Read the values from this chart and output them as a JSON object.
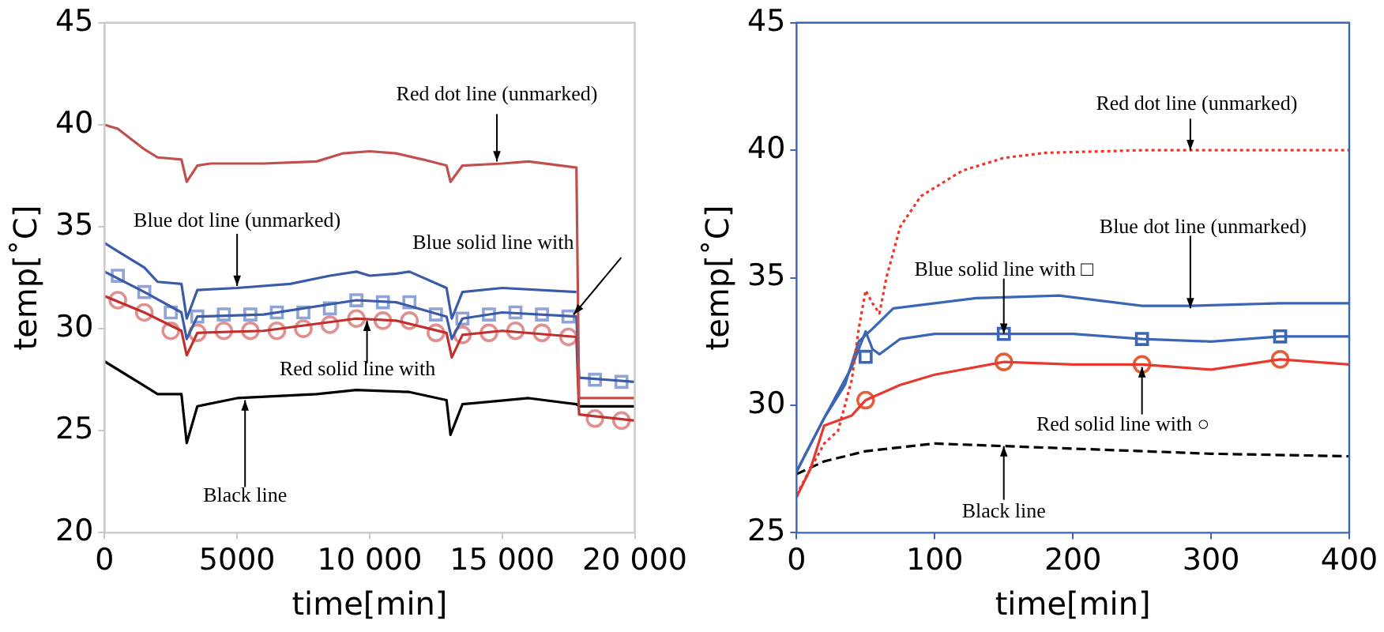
{
  "chart_data": [
    {
      "type": "line",
      "xlabel": "time[min]",
      "ylabel": "temp[˚C]",
      "xlim": [
        0,
        20000
      ],
      "ylim": [
        20,
        45
      ],
      "xticks": [
        0,
        5000,
        {
          "value": 10000,
          "label": "10 000"
        },
        {
          "value": 15000,
          "label": "15 000"
        },
        {
          "value": 20000,
          "label": "20 000"
        }
      ],
      "yticks": [
        20,
        25,
        30,
        35,
        40,
        45
      ],
      "grid": false,
      "legend": false,
      "series": [
        {
          "color": "#c0504d",
          "line_style": "solid",
          "x": [
            0,
            500,
            1000,
            1500,
            2000,
            2900,
            3100,
            3500,
            4000,
            6000,
            8000,
            9000,
            10000,
            11000,
            12000,
            12900,
            13050,
            13500,
            15000,
            16000,
            17800,
            17900,
            20000
          ],
          "values": [
            40,
            39.8,
            39.3,
            38.8,
            38.4,
            38.3,
            37.2,
            38,
            38.1,
            38.1,
            38.2,
            38.6,
            38.7,
            38.6,
            38.3,
            38,
            37.2,
            38,
            38.1,
            38.2,
            37.9,
            26.6,
            26.6
          ]
        },
        {
          "color": "#3a5ba8",
          "line_style": "solid",
          "x": [
            0,
            500,
            1500,
            2000,
            2900,
            3100,
            3500,
            5000,
            7000,
            8500,
            9500,
            10000,
            11000,
            11500,
            12900,
            13100,
            13500,
            15000,
            17800
          ],
          "values": [
            34.2,
            33.8,
            33,
            32.3,
            32.2,
            30.5,
            31.9,
            32,
            32.2,
            32.6,
            32.8,
            32.6,
            32.7,
            32.8,
            32,
            30.5,
            31.8,
            32,
            31.8
          ]
        },
        {
          "color": "#3a5ba8",
          "line_style": "solid",
          "x": [
            0,
            1500,
            2900,
            3100,
            3500,
            6000,
            9500,
            11000,
            12900,
            13100,
            13500,
            15000,
            17800,
            17900,
            20000
          ],
          "values": [
            32.8,
            31.8,
            30.8,
            29.5,
            30.6,
            30.7,
            31.4,
            31.3,
            30.6,
            29.5,
            30.5,
            30.8,
            30.6,
            27.6,
            27.4
          ]
        },
        {
          "color": "#c0302d",
          "line_style": "solid",
          "x": [
            0,
            1500,
            2900,
            3100,
            3500,
            6000,
            9500,
            11000,
            12900,
            13100,
            13500,
            15000,
            17800,
            17900,
            20000
          ],
          "values": [
            31.6,
            30.8,
            29.9,
            28.7,
            29.8,
            29.9,
            30.5,
            30.4,
            29.8,
            28.6,
            29.7,
            29.9,
            29.6,
            25.8,
            25.5
          ]
        },
        {
          "color": "#000000",
          "line_style": "solid",
          "x": [
            0,
            1500,
            2000,
            2900,
            3100,
            3500,
            5000,
            8000,
            9500,
            11500,
            12900,
            13050,
            13500,
            16000,
            17800,
            17900,
            20000
          ],
          "values": [
            28.4,
            27.2,
            26.8,
            26.8,
            24.4,
            26.2,
            26.6,
            26.8,
            27,
            26.9,
            26.5,
            24.8,
            26.3,
            26.6,
            26.3,
            26.2,
            26.2
          ]
        },
        {
          "type": "scatter",
          "marker": "square",
          "color": "#8fa3d6",
          "x": [
            500,
            1500,
            2500,
            3500,
            4500,
            5500,
            6500,
            7500,
            8500,
            9500,
            10500,
            11500,
            12500,
            13500,
            14500,
            15500,
            16500,
            17500,
            18500,
            19500
          ],
          "values": [
            32.6,
            31.8,
            30.8,
            30.6,
            30.7,
            30.7,
            30.8,
            30.8,
            31,
            31.4,
            31.3,
            31.3,
            30.7,
            30.5,
            30.7,
            30.8,
            30.7,
            30.6,
            27.5,
            27.4
          ]
        },
        {
          "type": "scatter",
          "marker": "circle",
          "color": "#e09090",
          "x": [
            500,
            1500,
            2500,
            3500,
            4500,
            5500,
            6500,
            7500,
            8500,
            9500,
            10500,
            11500,
            12500,
            13500,
            14500,
            15500,
            16500,
            17500,
            18500,
            19500
          ],
          "values": [
            31.4,
            30.8,
            29.9,
            29.8,
            29.9,
            29.9,
            29.9,
            30,
            30.2,
            30.5,
            30.4,
            30.4,
            29.8,
            29.7,
            29.8,
            29.9,
            29.8,
            29.6,
            25.6,
            25.5
          ]
        }
      ],
      "annotations": [
        {
          "text": "Red dot line (unmarked)",
          "x": 14800,
          "y": 38.2
        },
        {
          "text": "Blue dot line (unmarked)",
          "x": 5000,
          "y": 32.1
        },
        {
          "text": "Blue solid line with",
          "x": 17700,
          "y": 30.7
        },
        {
          "text": "Red solid line with",
          "x": 9900,
          "y": 30.4
        },
        {
          "text": "Black line",
          "x": 5300,
          "y": 26.5
        }
      ]
    },
    {
      "type": "line",
      "xlabel": "time[min]",
      "ylabel": "temp[˚C]",
      "xlim": [
        0,
        400
      ],
      "ylim": [
        25,
        45
      ],
      "xticks": [
        0,
        100,
        200,
        300,
        400
      ],
      "yticks": [
        25,
        30,
        35,
        40,
        45
      ],
      "grid": false,
      "legend": false,
      "series": [
        {
          "color": "#e8392e",
          "line_style": "dotted",
          "x": [
            0,
            10,
            20,
            30,
            40,
            45,
            50,
            55,
            60,
            65,
            75,
            90,
            120,
            150,
            180,
            250,
            300,
            400
          ],
          "values": [
            26.5,
            27.5,
            28.5,
            29,
            31,
            33,
            34.5,
            34,
            33.6,
            35,
            37,
            38.2,
            39.2,
            39.7,
            39.9,
            40,
            40,
            40
          ]
        },
        {
          "color": "#3a66b5",
          "line_style": "solid",
          "x": [
            0,
            20,
            35,
            45,
            55,
            70,
            100,
            130,
            190,
            250,
            285,
            350,
            400
          ],
          "values": [
            27.4,
            29.5,
            30.8,
            32.5,
            33,
            33.8,
            34,
            34.2,
            34.3,
            33.9,
            33.9,
            34,
            34
          ]
        },
        {
          "color": "#3a66b5",
          "line_style": "solid",
          "x": [
            0,
            20,
            40,
            50,
            55,
            60,
            75,
            100,
            150,
            200,
            250,
            300,
            350,
            400
          ],
          "values": [
            27.4,
            29.5,
            31.5,
            32.9,
            32.2,
            32,
            32.6,
            32.8,
            32.8,
            32.8,
            32.6,
            32.5,
            32.7,
            32.7
          ]
        },
        {
          "color": "#e8392e",
          "line_style": "solid",
          "x": [
            0,
            10,
            20,
            40,
            50,
            75,
            100,
            150,
            200,
            250,
            300,
            350,
            400
          ],
          "values": [
            26.4,
            27.5,
            29.2,
            29.6,
            30.2,
            30.8,
            31.2,
            31.7,
            31.6,
            31.6,
            31.4,
            31.8,
            31.6
          ]
        },
        {
          "color": "#000000",
          "line_style": "dashed",
          "x": [
            0,
            20,
            50,
            100,
            150,
            200,
            300,
            400
          ],
          "values": [
            27.3,
            27.8,
            28.2,
            28.5,
            28.4,
            28.3,
            28.1,
            28
          ]
        },
        {
          "type": "scatter",
          "marker": "square",
          "color": "#3a66b5",
          "x": [
            50,
            150,
            250,
            350
          ],
          "values": [
            31.9,
            32.8,
            32.6,
            32.7
          ]
        },
        {
          "type": "scatter",
          "marker": "circle",
          "color": "#e0603a",
          "x": [
            50,
            150,
            250,
            350
          ],
          "values": [
            30.2,
            31.7,
            31.6,
            31.8
          ]
        }
      ],
      "annotations": [
        {
          "text": "Red dot line (unmarked)",
          "x": 285,
          "y": 40
        },
        {
          "text": "Blue dot line (unmarked)",
          "x": 285,
          "y": 33.8
        },
        {
          "text": "Blue solid line with □",
          "x": 150,
          "y": 32.8
        },
        {
          "text": "Red solid line with ○",
          "x": 250,
          "y": 31.5
        },
        {
          "text": "Black line",
          "x": 150,
          "y": 28.4
        }
      ]
    }
  ]
}
